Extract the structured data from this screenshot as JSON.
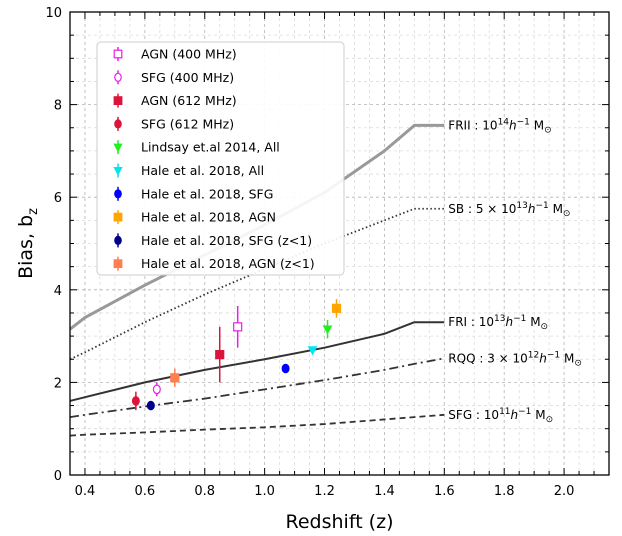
{
  "chart_data": {
    "type": "scatter",
    "xlabel": "Redshift (z)",
    "ylabel": "Bias, b",
    "ylabel_subscript": "z",
    "xlim": [
      0.35,
      2.15
    ],
    "ylim": [
      0,
      10
    ],
    "x_ticks": [
      "0.4",
      "0.6",
      "0.8",
      "1.0",
      "1.2",
      "1.4",
      "1.6",
      "1.8",
      "2.0"
    ],
    "y_ticks": [
      "0",
      "2",
      "4",
      "6",
      "8",
      "10"
    ],
    "grid": true,
    "legend_position": "top-left",
    "series": [
      {
        "name": "AGN (400 MHz)",
        "marker": "square-open",
        "color": "#e81ee8",
        "points": [
          {
            "x": 0.91,
            "y": 3.2,
            "err": 0.45
          }
        ]
      },
      {
        "name": "SFG (400 MHz)",
        "marker": "circle-open",
        "color": "#e81ee8",
        "points": [
          {
            "x": 0.64,
            "y": 1.85,
            "err": 0.15
          }
        ]
      },
      {
        "name": "AGN (612 MHz)",
        "marker": "square",
        "color": "#dc143c",
        "points": [
          {
            "x": 0.85,
            "y": 2.6,
            "err": 0.6
          }
        ]
      },
      {
        "name": "SFG (612 MHz)",
        "marker": "circle",
        "color": "#dc143c",
        "points": [
          {
            "x": 0.57,
            "y": 1.6,
            "err": 0.2
          }
        ]
      },
      {
        "name": "Lindsay et.al 2014, All",
        "marker": "triangle-down",
        "color": "#22ee22",
        "points": [
          {
            "x": 1.21,
            "y": 3.15,
            "err": 0.2
          }
        ]
      },
      {
        "name": "Hale et al. 2018, All",
        "marker": "triangle-down",
        "color": "#00e5ee",
        "points": [
          {
            "x": 1.16,
            "y": 2.7,
            "err": 0.07
          }
        ]
      },
      {
        "name": "Hale et al. 2018, SFG",
        "marker": "circle",
        "color": "#0000ff",
        "points": [
          {
            "x": 1.07,
            "y": 2.3,
            "err": 0.07
          }
        ]
      },
      {
        "name": "Hale et al. 2018, AGN",
        "marker": "square",
        "color": "#ffa500",
        "points": [
          {
            "x": 1.24,
            "y": 3.6,
            "err": 0.2
          }
        ]
      },
      {
        "name": "Hale et al. 2018, SFG (z<1)",
        "marker": "circle",
        "color": "#00008b",
        "points": [
          {
            "x": 0.62,
            "y": 1.5,
            "err": 0.07
          }
        ]
      },
      {
        "name": "Hale et al. 2018, AGN (z<1)",
        "marker": "square",
        "color": "#ff7f50",
        "points": [
          {
            "x": 0.7,
            "y": 2.1,
            "err": 0.2
          }
        ]
      }
    ],
    "model_curves": [
      {
        "label_prefix": "FRII : ",
        "label_math": "10",
        "label_sup": "14",
        "label_tail": "h",
        "label_tail_sup": "−1",
        "label_unit": " M",
        "label_unit_sub": "⊙",
        "style": "solid-thick",
        "color": "#999999",
        "x": [
          0.35,
          0.4,
          0.6,
          0.8,
          1.0,
          1.2,
          1.4,
          1.5,
          1.6
        ],
        "y": [
          3.15,
          3.4,
          4.1,
          4.75,
          5.4,
          6.1,
          7.0,
          7.55,
          7.55
        ]
      },
      {
        "label_prefix": "SB : 5 × ",
        "label_math": "10",
        "label_sup": "13",
        "label_tail": "h",
        "label_tail_sup": "−1",
        "label_unit": " M",
        "label_unit_sub": "⊙",
        "style": "dotted",
        "color": "#333333",
        "x": [
          0.35,
          0.4,
          0.6,
          0.8,
          1.0,
          1.2,
          1.4,
          1.5,
          1.6
        ],
        "y": [
          2.5,
          2.65,
          3.3,
          3.9,
          4.45,
          5.0,
          5.5,
          5.75,
          5.75
        ]
      },
      {
        "label_prefix": "FRI : ",
        "label_math": "10",
        "label_sup": "13",
        "label_tail": "h",
        "label_tail_sup": "−1",
        "label_unit": " M",
        "label_unit_sub": "⊙",
        "style": "solid",
        "color": "#333333",
        "x": [
          0.35,
          0.4,
          0.6,
          0.8,
          1.0,
          1.2,
          1.4,
          1.5,
          1.6
        ],
        "y": [
          1.6,
          1.68,
          2.0,
          2.27,
          2.5,
          2.75,
          3.05,
          3.3,
          3.3
        ]
      },
      {
        "label_prefix": "RQQ : 3 × ",
        "label_math": "10",
        "label_sup": "12",
        "label_tail": "h",
        "label_tail_sup": "−1",
        "label_unit": " M",
        "label_unit_sub": "⊙",
        "style": "dashdot",
        "color": "#333333",
        "x": [
          0.35,
          0.4,
          0.6,
          0.8,
          1.0,
          1.2,
          1.4,
          1.5,
          1.6
        ],
        "y": [
          1.25,
          1.3,
          1.48,
          1.65,
          1.85,
          2.05,
          2.27,
          2.4,
          2.52
        ]
      },
      {
        "label_prefix": "SFG : ",
        "label_math": "10",
        "label_sup": "11",
        "label_tail": "h",
        "label_tail_sup": "−1",
        "label_unit": " M",
        "label_unit_sub": "⊙",
        "style": "dashed",
        "color": "#333333",
        "x": [
          0.35,
          0.4,
          0.6,
          0.8,
          1.0,
          1.2,
          1.4,
          1.6
        ],
        "y": [
          0.85,
          0.87,
          0.92,
          0.98,
          1.03,
          1.1,
          1.2,
          1.3
        ]
      }
    ]
  }
}
